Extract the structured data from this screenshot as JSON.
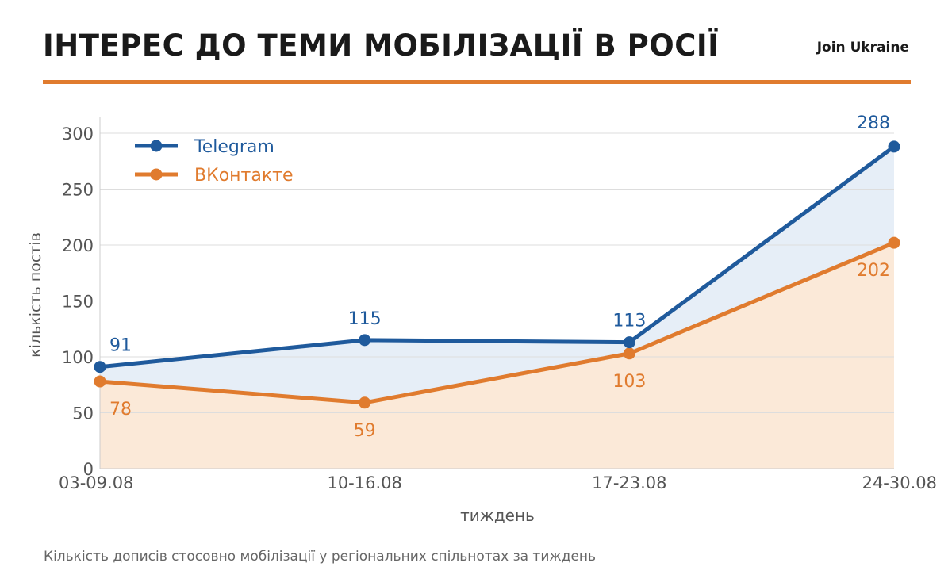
{
  "header": {
    "title": "ІНТЕРЕС ДО ТЕМИ МОБІЛІЗАЦІЇ В РОСІЇ",
    "brand": "Join Ukraine"
  },
  "footer": {
    "note": "Кількість дописів стосовно мобілізації у регіональних спільнотах за тиждень"
  },
  "chart_data": {
    "type": "line",
    "title": "ІНТЕРЕС ДО ТЕМИ МОБІЛІЗАЦІЇ В РОСІЇ",
    "xlabel": "тиждень",
    "ylabel": "кількість постів",
    "categories": [
      "03-09.08",
      "10-16.08",
      "17-23.08",
      "24-30.08"
    ],
    "ylim": [
      0,
      300
    ],
    "yticks": [
      0,
      50,
      100,
      150,
      200,
      250,
      300
    ],
    "grid": true,
    "legend": "top-left",
    "series": [
      {
        "name": "Telegram",
        "values": [
          91,
          115,
          113,
          288
        ],
        "color": "#1f5a9c",
        "fill": "#e6eef7"
      },
      {
        "name": "ВКонтакте",
        "values": [
          78,
          59,
          103,
          202
        ],
        "color": "#e07b2e",
        "fill": "#fbe9d8"
      }
    ]
  }
}
